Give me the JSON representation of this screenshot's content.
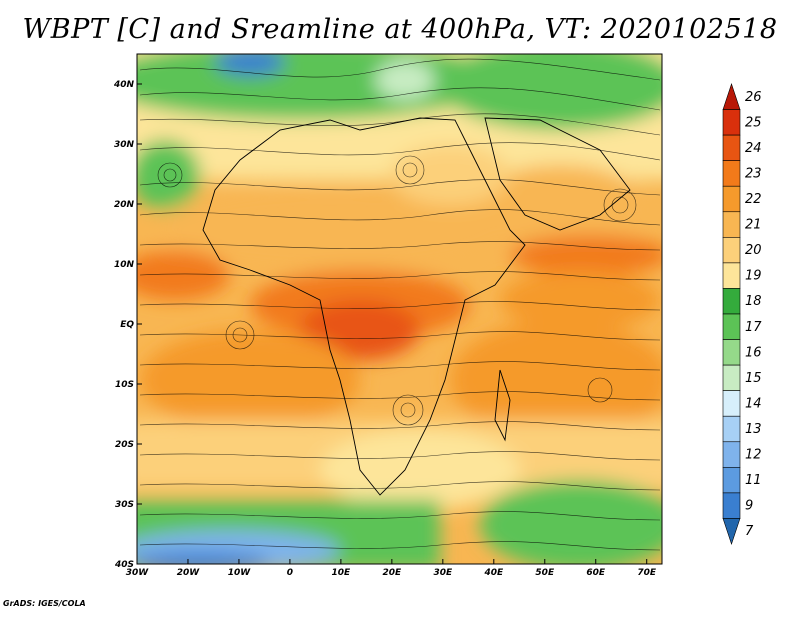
{
  "title": "WBPT [C] and Sreamline at 400hPa, VT: 2020102518",
  "credit": "GrADS: IGES/COLA",
  "axes": {
    "lon_labels": [
      "30W",
      "20W",
      "10W",
      "0",
      "10E",
      "20E",
      "30E",
      "40E",
      "50E",
      "60E",
      "70E"
    ],
    "lon_values": [
      -30,
      -20,
      -10,
      0,
      10,
      20,
      30,
      40,
      50,
      60,
      70
    ],
    "lat_labels": [
      "40N",
      "30N",
      "20N",
      "10N",
      "EQ",
      "10S",
      "20S",
      "30S",
      "40S"
    ],
    "lat_values": [
      40,
      30,
      20,
      10,
      0,
      -10,
      -20,
      -30,
      -40
    ],
    "lon_range": [
      -30,
      73
    ],
    "lat_range": [
      -40,
      45
    ]
  },
  "colorbar": {
    "labels": [
      "7",
      "9",
      "11",
      "12",
      "13",
      "14",
      "15",
      "16",
      "17",
      "18",
      "19",
      "20",
      "21",
      "22",
      "23",
      "24",
      "25",
      "26"
    ],
    "colors": [
      "#2166ac",
      "#3a7fd0",
      "#5c9be0",
      "#7fb3ec",
      "#a7d0f5",
      "#d7effb",
      "#c8ecc3",
      "#95d98a",
      "#5cc356",
      "#34ab3c",
      "#fde59a",
      "#fcd07a",
      "#f8b652",
      "#f59a2c",
      "#f27a1a",
      "#e85512",
      "#d9300c",
      "#b81807"
    ]
  },
  "legend": {
    "placement": "right"
  }
}
